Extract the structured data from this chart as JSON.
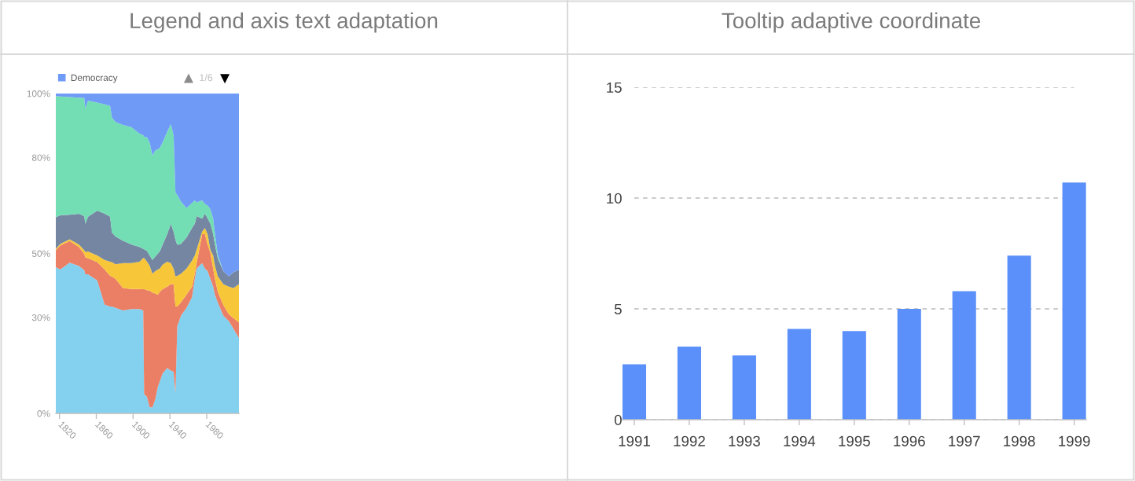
{
  "chart_data": [
    {
      "type": "area",
      "title": "Legend and axis text adaptation",
      "stacked": true,
      "x": [
        1816,
        1821,
        1831,
        1841,
        1847,
        1848,
        1851,
        1861,
        1869,
        1875,
        1877,
        1881,
        1889,
        1898,
        1907,
        1911,
        1912,
        1915,
        1918,
        1921,
        1924,
        1927,
        1929,
        1932,
        1937,
        1941,
        1944,
        1946,
        1948,
        1952,
        1958,
        1964,
        1967,
        1969,
        1975,
        1978,
        1981,
        1984,
        1987,
        1989,
        1992,
        1998,
        2004,
        2009,
        2015
      ],
      "series": [
        {
          "color": "#83d0ef",
          "values": [
            45.7,
            45.0,
            47.1,
            46.1,
            44.8,
            43.5,
            43.5,
            41.6,
            34.0,
            33.4,
            33.4,
            33.0,
            32.2,
            32.6,
            32.6,
            32.2,
            6.0,
            5.2,
            1.9,
            1.9,
            4.3,
            8.4,
            10.0,
            12.5,
            14.2,
            13.4,
            13.0,
            6.4,
            27.3,
            30.6,
            33.0,
            36.3,
            42.0,
            45.3,
            47.0,
            45.3,
            44.5,
            42.0,
            39.6,
            37.0,
            34.7,
            30.6,
            28.9,
            26.5,
            23.6
          ]
        },
        {
          "color": "#eb7f65",
          "values": [
            5.3,
            7.5,
            6.8,
            5.9,
            5.0,
            5.3,
            5.0,
            5.7,
            11.0,
            9.6,
            9.4,
            9.0,
            7.0,
            6.3,
            6.3,
            6.6,
            32.8,
            33.3,
            36.5,
            35.9,
            33.2,
            28.7,
            28.0,
            26.3,
            25.4,
            27.0,
            27.4,
            27.0,
            6.1,
            4.1,
            4.1,
            3.3,
            1.7,
            1.7,
            9.0,
            10.7,
            8.2,
            8.2,
            5.7,
            5.0,
            3.3,
            3.3,
            2.1,
            3.3,
            4.9
          ]
        },
        {
          "color": "#f7c739",
          "values": [
            0.5,
            0.5,
            0.5,
            0.8,
            1.2,
            1.7,
            2.1,
            2.1,
            3.0,
            4.4,
            4.5,
            4.6,
            7.8,
            8.1,
            8.5,
            9.8,
            9.8,
            9.0,
            7.7,
            5.9,
            7.0,
            7.9,
            7.3,
            7.7,
            7.8,
            6.6,
            4.9,
            9.5,
            9.6,
            9.0,
            8.2,
            8.2,
            5.7,
            4.2,
            0.8,
            2.0,
            3.3,
            0.9,
            4.1,
            4.1,
            4.9,
            6.5,
            8.6,
            9.4,
            11.9
          ]
        },
        {
          "color": "#7586a2",
          "values": [
            9.8,
            9.0,
            7.7,
            9.6,
            10.7,
            8.8,
            10.9,
            14.0,
            14.5,
            14.1,
            9.2,
            8.7,
            7.0,
            5.8,
            4.6,
            2.9,
            2.7,
            3.3,
            3.3,
            4.3,
            4.5,
            5.0,
            5.4,
            6.2,
            8.6,
            12.3,
            11.5,
            11.4,
            9.7,
            9.3,
            9.7,
            10.2,
            9.9,
            10.5,
            4.1,
            4.5,
            5.0,
            8.2,
            6.6,
            6.6,
            5.6,
            4.1,
            3.3,
            4.9,
            4.5
          ]
        },
        {
          "color": "#73deb4",
          "values": [
            37.9,
            37.1,
            36.8,
            36.3,
            36.9,
            36.0,
            36.3,
            33.8,
            34.1,
            34.6,
            36.0,
            35.8,
            36.2,
            36.7,
            35.5,
            35.5,
            35.2,
            35.5,
            35.3,
            32.6,
            33.2,
            32.6,
            32.3,
            32.0,
            32.0,
            31.1,
            30.2,
            14.8,
            15.6,
            13.2,
            9.2,
            7.8,
            7.3,
            4.3,
            5.7,
            3.0,
            4.0,
            4.5,
            4.9,
            3.3,
            1.0,
            0,
            0,
            0,
            0
          ]
        },
        {
          "name": "Democracy",
          "color": "#6f9bf7",
          "values": [
            0.8,
            0.9,
            1.1,
            1.3,
            1.4,
            4.7,
            2.2,
            2.8,
            3.4,
            3.9,
            7.5,
            8.9,
            9.8,
            10.5,
            12.5,
            13.0,
            13.5,
            13.7,
            15.3,
            19.4,
            17.8,
            17.4,
            17.0,
            15.3,
            12.0,
            9.6,
            13.0,
            30.9,
            31.7,
            33.8,
            35.8,
            34.2,
            33.4,
            34.0,
            33.4,
            34.5,
            35.0,
            36.2,
            39.1,
            44.0,
            50.5,
            55.5,
            57.1,
            55.9,
            55.1
          ]
        }
      ],
      "xlim": [
        1816,
        2015
      ],
      "ylim": [
        0,
        100
      ],
      "xticks": [
        1820,
        1860,
        1900,
        1940,
        1980
      ],
      "yticks": [
        {
          "value": 0,
          "label": "0%"
        },
        {
          "value": 30,
          "label": "30%"
        },
        {
          "value": 50,
          "label": "50%"
        },
        {
          "value": 80,
          "label": "80%"
        },
        {
          "value": 100,
          "label": "100%"
        }
      ],
      "legend": "top left",
      "annotations": [
        "1/6"
      ]
    },
    {
      "type": "bar",
      "title": "Tooltip adaptive coordinate",
      "categories": [
        "1991",
        "1992",
        "1993",
        "1994",
        "1995",
        "1996",
        "1997",
        "1998",
        "1999"
      ],
      "values": [
        2.5,
        3.3,
        2.9,
        4.1,
        4.0,
        5.0,
        5.8,
        7.4,
        10.7
      ],
      "color": "#5b8ff9",
      "ylim": [
        0,
        15
      ],
      "yticks": [
        0,
        5,
        10,
        15
      ],
      "grid": "y"
    }
  ]
}
